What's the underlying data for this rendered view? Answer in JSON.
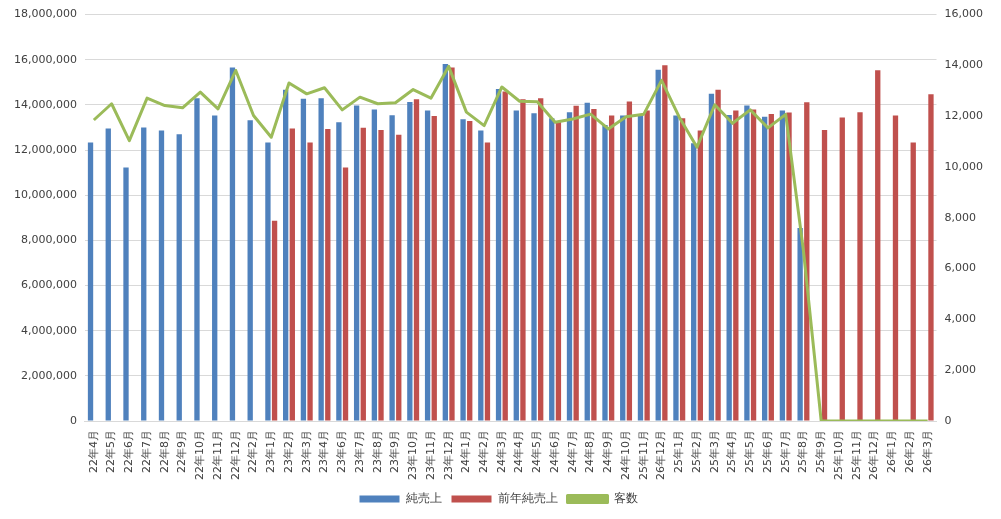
{
  "chart_data": {
    "type": "bar",
    "categories": [
      "22年4月",
      "22年5月",
      "22年6月",
      "22年7月",
      "22年8月",
      "22年9月",
      "22年10月",
      "22年11月",
      "22年12月",
      "22年2月",
      "23年1月",
      "23年2月",
      "23年3月",
      "23年4月",
      "23年6月",
      "23年7月",
      "23年8月",
      "23年9月",
      "23年10月",
      "23年11月",
      "23年12月",
      "24年1月",
      "24年2月",
      "24年3月",
      "24年4月",
      "24年5月",
      "24年6月",
      "24年7月",
      "24年8月",
      "24年9月",
      "24年10月",
      "25年11月",
      "26年12月",
      "25年1月",
      "25年2月",
      "25年3月",
      "25年4月",
      "25年5月",
      "25年6月",
      "25年7月",
      "25年8月",
      "25年9月",
      "25年10月",
      "25年11月",
      "26年12月",
      "26年1月",
      "26年2月",
      "26年3月"
    ],
    "series": [
      {
        "name": "純売上",
        "color": "#4f81bd",
        "values": [
          12330000,
          12960000,
          11230000,
          13000000,
          12870000,
          12700000,
          14300000,
          13530000,
          15660000,
          13320000,
          12330000,
          14670000,
          14270000,
          14300000,
          13230000,
          13970000,
          13800000,
          13540000,
          14130000,
          13750000,
          15810000,
          13360000,
          12870000,
          14710000,
          13750000,
          13630000,
          13410000,
          13670000,
          14100000,
          13110000,
          13530000,
          13600000,
          15560000,
          13530000,
          12300000,
          14490000,
          13550000,
          13970000,
          13480000,
          13750000,
          8550000,
          null,
          null,
          null,
          null,
          null,
          null,
          null
        ]
      },
      {
        "name": "前年純売上",
        "color": "#c0504d",
        "values": [
          null,
          null,
          null,
          null,
          null,
          null,
          null,
          null,
          null,
          null,
          8870000,
          12960000,
          12330000,
          12930000,
          11230000,
          12990000,
          12890000,
          12680000,
          14250000,
          13510000,
          15660000,
          13290000,
          12330000,
          14590000,
          14250000,
          14300000,
          13260000,
          13960000,
          13820000,
          13530000,
          14150000,
          13750000,
          15760000,
          13410000,
          12870000,
          14670000,
          13750000,
          13800000,
          13600000,
          13660000,
          14120000,
          12890000,
          13440000,
          13670000,
          15530000,
          13530000,
          12330000,
          14470000
        ]
      },
      {
        "name": "客数",
        "type": "line",
        "axis": "y2",
        "color": "#9bbb59",
        "values": [
          11850,
          12490,
          11040,
          12710,
          12420,
          12330,
          12950,
          12290,
          13800,
          12030,
          11170,
          13310,
          12880,
          13120,
          12250,
          12750,
          12490,
          12530,
          13050,
          12710,
          13960,
          12160,
          11630,
          13150,
          12590,
          12570,
          11760,
          11890,
          12080,
          11500,
          11980,
          12080,
          13410,
          11960,
          10780,
          12450,
          11720,
          12250,
          11540,
          12070,
          6700,
          0,
          0,
          0,
          0,
          0,
          0,
          0
        ]
      }
    ],
    "ylim": [
      0,
      18000000
    ],
    "yticks": [
      {
        "value": 0,
        "label": "0"
      },
      {
        "value": 2000000,
        "label": "2,000,000"
      },
      {
        "value": 4000000,
        "label": "4,000,000"
      },
      {
        "value": 6000000,
        "label": "6,000,000"
      },
      {
        "value": 8000000,
        "label": "8,000,000"
      },
      {
        "value": 10000000,
        "label": "10,000,000"
      },
      {
        "value": 12000000,
        "label": "12,000,000"
      },
      {
        "value": 14000000,
        "label": "14,000,000"
      },
      {
        "value": 16000000,
        "label": "16,000,000"
      },
      {
        "value": 18000000,
        "label": "18,000,000"
      }
    ],
    "y2lim": [
      0,
      16000
    ],
    "y2ticks": [
      {
        "value": 0,
        "label": "0"
      },
      {
        "value": 2000,
        "label": "2,000"
      },
      {
        "value": 4000,
        "label": "4,000"
      },
      {
        "value": 6000,
        "label": "6,000"
      },
      {
        "value": 8000,
        "label": "8,000"
      },
      {
        "value": 10000,
        "label": "10,000"
      },
      {
        "value": 12000,
        "label": "12,000"
      },
      {
        "value": 14000,
        "label": "14,000"
      },
      {
        "value": 16000,
        "label": "16,000"
      }
    ],
    "grid": "y",
    "legend": "bottom",
    "marker": "none",
    "line_style": "solid"
  }
}
